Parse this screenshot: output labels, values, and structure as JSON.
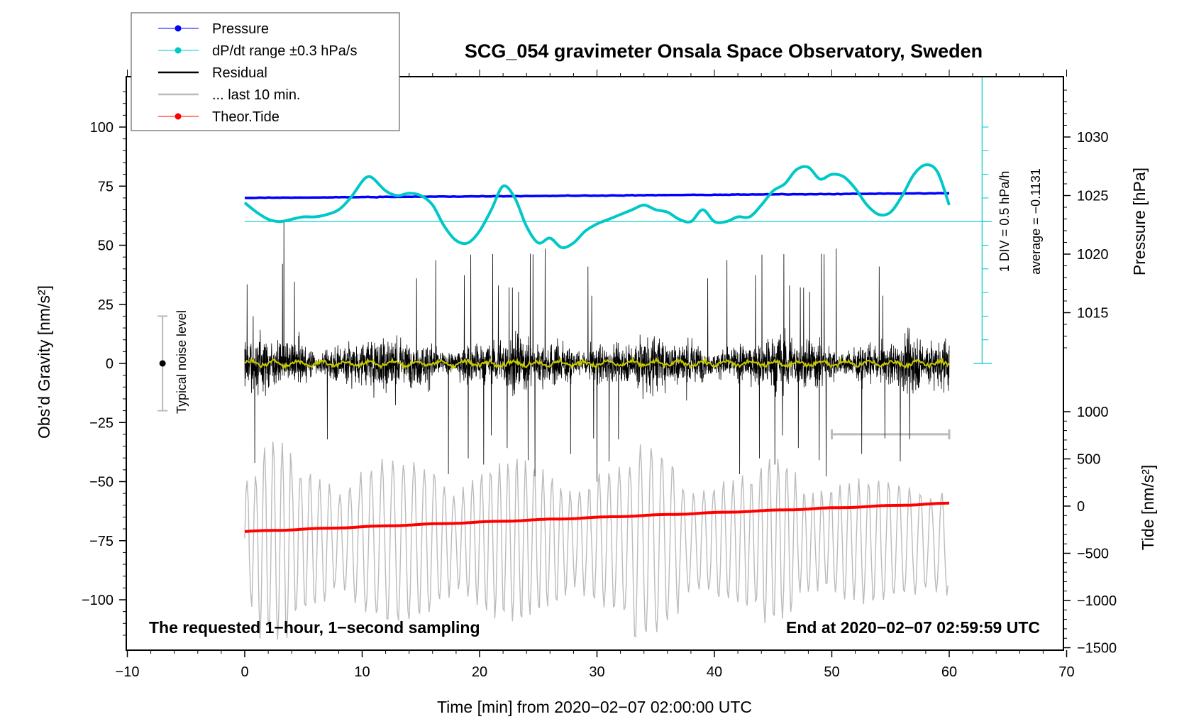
{
  "chart_data": {
    "type": "line",
    "title": "SCG_054 gravimeter Onsala Space Observatory, Sweden",
    "xlabel": "Time [min] from 2020−02−07 02:00:00 UTC",
    "xlim": [
      -10,
      70
    ],
    "x_ticks": [
      "−10",
      "0",
      "10",
      "20",
      "30",
      "40",
      "50",
      "60",
      "70"
    ],
    "left_axis": {
      "label": "Obs’d Gravity [nm/s²]",
      "range": [
        -120,
        120
      ],
      "ticks": [
        "100",
        "75",
        "50",
        "25",
        "0",
        "−25",
        "−50",
        "−75",
        "−100"
      ]
    },
    "pressure_axis": {
      "label": "Pressure [hPa]",
      "range_hint": [
        1010,
        1035
      ],
      "ticks": [
        "1030",
        "1025",
        "1020",
        "1015"
      ]
    },
    "tide_axis": {
      "label": "Tide [nm/s²]",
      "range": [
        -1500,
        1000
      ],
      "ticks": [
        "1000",
        "500",
        "0",
        "−500",
        "−1000",
        "−1500"
      ]
    },
    "legend": {
      "position": "top-left",
      "entries": [
        "Pressure",
        "dP/dt range ±0.3 hPa/s",
        "Residual",
        "... last 10 min.",
        "Theor.Tide"
      ]
    },
    "colors": {
      "pressure": "#0000ff",
      "dpdt": "#00c8c8",
      "residual": "#000000",
      "last10": "#bbbbbb",
      "tide": "#ff0000",
      "smoothed": "#c8c800"
    },
    "annotations": {
      "left": "The requested 1−hour, 1−second sampling",
      "right": "End at 2020−02−07 02:59:59 UTC",
      "noise": "Typical noise level",
      "scale": "1 DIV = 0.5 hPa/h",
      "average": "average = −0.1131"
    },
    "noise_level": {
      "x": -7,
      "y": 0,
      "range": [
        -20,
        20
      ]
    },
    "last10_bar": {
      "x": [
        50,
        60
      ],
      "y": -30
    },
    "series": [
      {
        "name": "Pressure",
        "axis": "pressure",
        "x": [
          0,
          60
        ],
        "values": [
          1024.8,
          1025.2
        ]
      },
      {
        "name": "Theor.Tide",
        "axis": "tide",
        "x": [
          0,
          60
        ],
        "values": [
          -270,
          30
        ]
      },
      {
        "name": "dP/dt range",
        "axis": "left",
        "x": [
          0,
          1,
          2,
          3,
          4,
          5,
          6,
          7,
          8,
          9,
          10,
          10.5,
          11,
          12,
          13,
          14,
          15,
          16,
          17,
          18,
          19,
          20,
          21,
          22,
          23,
          24,
          25,
          26,
          27,
          28,
          29,
          30,
          31,
          32,
          33,
          34,
          35,
          36,
          37,
          38,
          39,
          40,
          41,
          42,
          43,
          44,
          45,
          46,
          47,
          48,
          49,
          50,
          51,
          52,
          53,
          54,
          55,
          56,
          57,
          58,
          59,
          60
        ],
        "values": [
          68,
          64,
          61,
          60,
          61,
          62,
          62,
          63,
          65,
          70,
          77,
          79,
          78,
          73,
          71,
          72,
          71,
          67,
          58,
          52,
          51,
          56,
          65,
          75,
          70,
          58,
          51,
          53,
          49,
          51,
          56,
          59,
          61,
          63,
          65,
          67,
          65,
          64,
          61,
          60,
          65,
          60,
          60,
          62,
          62,
          67,
          73,
          76,
          82,
          83,
          78,
          80,
          79,
          74,
          67,
          63,
          64,
          71,
          80,
          84,
          81,
          67
        ]
      },
      {
        "name": "Residual",
        "axis": "left",
        "x_range": [
          0,
          60
        ],
        "amplitude_nm_s2": 25,
        "spike_range": [
          -52,
          60
        ]
      },
      {
        "name": "Smoothed residual",
        "axis": "left",
        "x_range": [
          0,
          60
        ],
        "mean": 0,
        "amplitude_nm_s2": 2
      },
      {
        "name": "... last 10 min.",
        "axis": "left",
        "x_range": [
          0,
          60
        ],
        "center": -75,
        "amplitude_nm_s2": 35
      }
    ]
  }
}
